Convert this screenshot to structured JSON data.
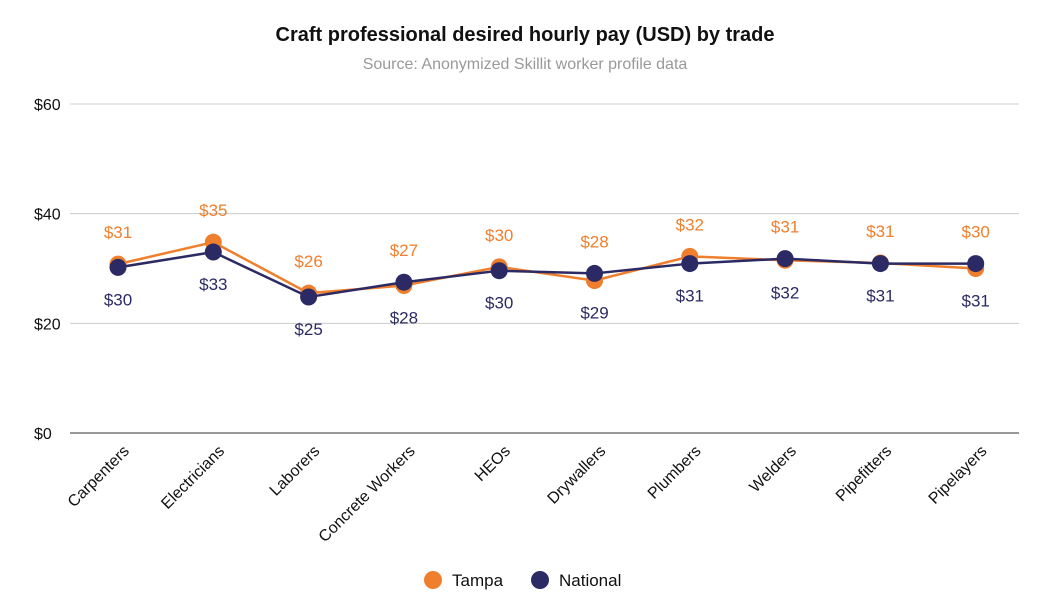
{
  "chart_data": {
    "type": "line",
    "title": "Craft professional desired hourly pay (USD) by trade",
    "subtitle": "Source: Anonymized Skillit worker profile data",
    "categories": [
      "Carpenters",
      "Electricians",
      "Laborers",
      "Concrete Workers",
      "HEOs",
      "Drywallers",
      "Plumbers",
      "Welders",
      "Pipefitters",
      "Pipelayers"
    ],
    "ylim": [
      0,
      60
    ],
    "yticks": [
      0,
      20,
      40,
      60
    ],
    "ytick_labels": [
      "$0",
      "$20",
      "$40",
      "$60"
    ],
    "grid": true,
    "legend_position": "bottom",
    "series": [
      {
        "name": "Tampa",
        "color": "#F07F2D",
        "values": [
          30.8,
          34.8,
          25.5,
          26.9,
          30.3,
          27.8,
          32.2,
          31.5,
          31.0,
          30.0
        ],
        "labels": [
          "$31",
          "$35",
          "$26",
          "$27",
          "$30",
          "$28",
          "$32",
          "$31",
          "$31",
          "$30"
        ]
      },
      {
        "name": "National",
        "color": "#2B2A64",
        "values": [
          30.2,
          33.0,
          24.8,
          27.5,
          29.6,
          29.1,
          30.9,
          31.8,
          30.9,
          30.9
        ],
        "labels": [
          "$30",
          "$33",
          "$25",
          "$28",
          "$30",
          "$29",
          "$31",
          "$32",
          "$31",
          "$31"
        ]
      }
    ]
  }
}
